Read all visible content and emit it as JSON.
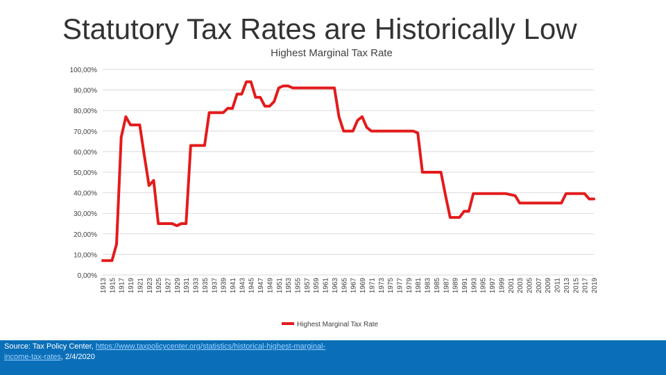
{
  "slide": {
    "title": "Statutory Tax Rates are Historically Low"
  },
  "source": {
    "prefix": "Source: Tax Policy Center, ",
    "link_text": "https://www.taxpolicycenter.org/statistics/historical-highest-marginal-income-tax-rates",
    "suffix": ", 2/4/2020"
  },
  "colors": {
    "series": "#e31b1b",
    "gridline": "#d9d9d9",
    "footer": "#0a6fb8"
  },
  "chart_data": {
    "type": "line",
    "title": "Highest Marginal Tax Rate",
    "xlabel": "",
    "ylabel": "",
    "ylim": [
      0,
      100
    ],
    "y_ticks": [
      0,
      10,
      20,
      30,
      40,
      50,
      60,
      70,
      80,
      90,
      100
    ],
    "y_tick_labels": [
      "0,00%",
      "10,00%",
      "20,00%",
      "30,00%",
      "40,00%",
      "50,00%",
      "60,00%",
      "70,00%",
      "80,00%",
      "90,00%",
      "100,00%"
    ],
    "x_tick_labels": [
      "1913",
      "1915",
      "1917",
      "1919",
      "1921",
      "1923",
      "1925",
      "1927",
      "1929",
      "1931",
      "1933",
      "1935",
      "1937",
      "1939",
      "1941",
      "1943",
      "1945",
      "1947",
      "1949",
      "1951",
      "1953",
      "1955",
      "1957",
      "1959",
      "1961",
      "1963",
      "1965",
      "1967",
      "1969",
      "1971",
      "1973",
      "1975",
      "1977",
      "1979",
      "1981",
      "1983",
      "1985",
      "1987",
      "1989",
      "1991",
      "1993",
      "1995",
      "1997",
      "1999",
      "2001",
      "2003",
      "2005",
      "2007",
      "2009",
      "2011",
      "2013",
      "2015",
      "2017",
      "2019"
    ],
    "grid": true,
    "legend_position": "bottom",
    "series": [
      {
        "name": "Highest Marginal Tax Rate",
        "x": [
          1913,
          1914,
          1915,
          1916,
          1917,
          1918,
          1919,
          1920,
          1921,
          1922,
          1923,
          1924,
          1925,
          1926,
          1927,
          1928,
          1929,
          1930,
          1931,
          1932,
          1933,
          1934,
          1935,
          1936,
          1937,
          1938,
          1939,
          1940,
          1941,
          1942,
          1943,
          1944,
          1945,
          1946,
          1947,
          1948,
          1949,
          1950,
          1951,
          1952,
          1953,
          1954,
          1955,
          1956,
          1957,
          1958,
          1959,
          1960,
          1961,
          1962,
          1963,
          1964,
          1965,
          1966,
          1967,
          1968,
          1969,
          1970,
          1971,
          1972,
          1973,
          1974,
          1975,
          1976,
          1977,
          1978,
          1979,
          1980,
          1981,
          1982,
          1983,
          1984,
          1985,
          1986,
          1987,
          1988,
          1989,
          1990,
          1991,
          1992,
          1993,
          1994,
          1995,
          1996,
          1997,
          1998,
          1999,
          2000,
          2001,
          2002,
          2003,
          2004,
          2005,
          2006,
          2007,
          2008,
          2009,
          2010,
          2011,
          2012,
          2013,
          2014,
          2015,
          2016,
          2017,
          2018,
          2019
        ],
        "values": [
          7,
          7,
          7,
          15,
          67,
          77,
          73,
          73,
          73,
          58,
          43.5,
          46,
          25,
          25,
          25,
          25,
          24,
          25,
          25,
          63,
          63,
          63,
          63,
          79,
          79,
          79,
          79,
          81.1,
          81,
          88,
          88,
          94,
          94,
          86.45,
          86.45,
          82.13,
          82.13,
          84.36,
          91,
          92,
          92,
          91,
          91,
          91,
          91,
          91,
          91,
          91,
          91,
          91,
          91,
          77,
          70,
          70,
          70,
          75.25,
          77,
          71.75,
          70,
          70,
          70,
          70,
          70,
          70,
          70,
          70,
          70,
          70,
          69.13,
          50,
          50,
          50,
          50,
          50,
          38.5,
          28,
          28,
          28,
          31,
          31,
          39.6,
          39.6,
          39.6,
          39.6,
          39.6,
          39.6,
          39.6,
          39.6,
          39.1,
          38.6,
          35,
          35,
          35,
          35,
          35,
          35,
          35,
          35,
          35,
          35,
          39.6,
          39.6,
          39.6,
          39.6,
          39.6,
          37,
          37
        ]
      }
    ]
  }
}
